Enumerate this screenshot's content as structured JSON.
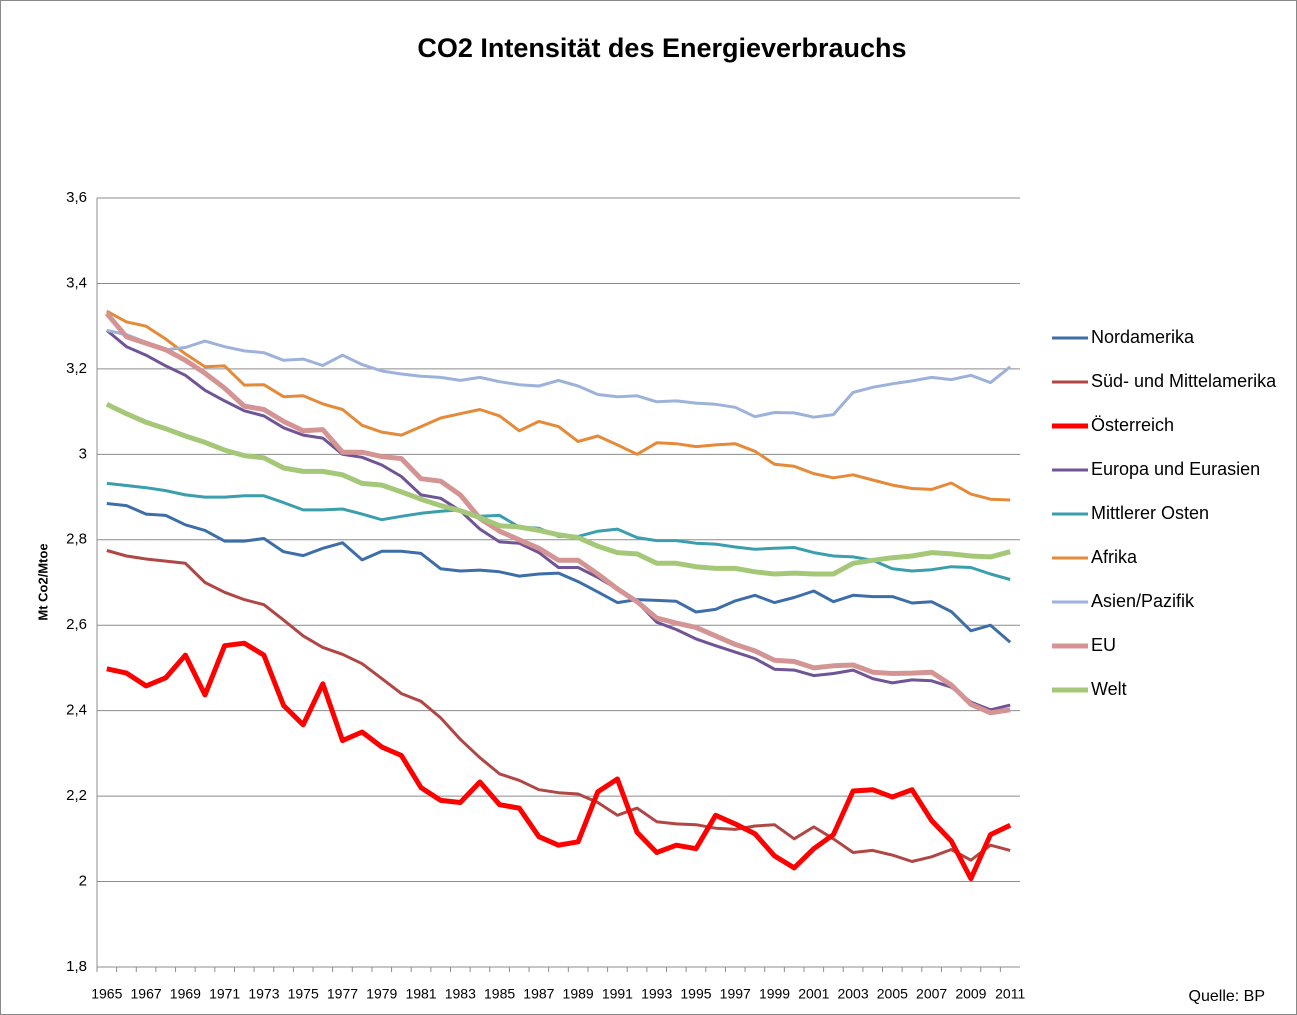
{
  "chart_data": {
    "type": "line",
    "title": "CO2 Intensität des Energieverbrauchs",
    "y_label": "Mt Co2/Mtoe",
    "source": "Quelle: BP",
    "legend": "right",
    "grid": true,
    "ylim": [
      1.8,
      3.6
    ],
    "yticks": [
      {
        "value": 1.8,
        "label": "1,8"
      },
      2,
      {
        "value": 2.2,
        "label": "2,2"
      },
      {
        "value": 2.4,
        "label": "2,4"
      },
      {
        "value": 2.6,
        "label": "2,6"
      },
      {
        "value": 2.8,
        "label": "2,8"
      },
      3,
      {
        "value": 3.2,
        "label": "3,2"
      },
      {
        "value": 3.4,
        "label": "3,4"
      },
      {
        "value": 3.6,
        "label": "3,6"
      }
    ],
    "categories": [
      "1965",
      null,
      "1967",
      null,
      "1969",
      null,
      "1971",
      null,
      "1973",
      null,
      "1975",
      null,
      "1977",
      null,
      "1979",
      null,
      "1981",
      null,
      "1983",
      null,
      "1985",
      null,
      "1987",
      null,
      "1989",
      null,
      "1991",
      null,
      "1993",
      null,
      "1995",
      null,
      "1997",
      null,
      "1999",
      null,
      "2001",
      null,
      "2003",
      null,
      "2005",
      null,
      "2007",
      null,
      "2009",
      null,
      "2011"
    ],
    "series": [
      {
        "name": "Nordamerika",
        "color": "#3e6ea8",
        "width": 3,
        "values": [
          2.885,
          2.88,
          2.86,
          2.857,
          2.835,
          2.822,
          2.797,
          2.797,
          2.803,
          2.772,
          2.763,
          2.78,
          2.793,
          2.753,
          2.773,
          2.773,
          2.768,
          2.732,
          2.727,
          2.729,
          2.725,
          2.715,
          2.72,
          2.722,
          2.702,
          2.678,
          2.653,
          2.66,
          2.658,
          2.656,
          2.631,
          2.637,
          2.657,
          2.67,
          2.653,
          2.665,
          2.68,
          2.655,
          2.67,
          2.667,
          2.667,
          2.652,
          2.655,
          2.632,
          2.587,
          2.6,
          2.56
        ]
      },
      {
        "name": "Süd- und Mittelamerika",
        "color": "#b04744",
        "width": 3,
        "values": [
          2.775,
          2.762,
          2.755,
          2.75,
          2.745,
          2.7,
          2.677,
          2.66,
          2.648,
          2.612,
          2.575,
          2.548,
          2.532,
          2.51,
          2.475,
          2.44,
          2.422,
          2.383,
          2.333,
          2.29,
          2.252,
          2.237,
          2.215,
          2.208,
          2.205,
          2.185,
          2.155,
          2.172,
          2.14,
          2.135,
          2.133,
          2.125,
          2.122,
          2.13,
          2.133,
          2.1,
          2.128,
          2.1,
          2.068,
          2.073,
          2.062,
          2.047,
          2.058,
          2.075,
          2.05,
          2.085,
          2.073
        ]
      },
      {
        "name": "Österreich",
        "color": "#ff0000",
        "width": 5,
        "values": [
          2.498,
          2.488,
          2.458,
          2.477,
          2.53,
          2.437,
          2.552,
          2.558,
          2.53,
          2.412,
          2.367,
          2.463,
          2.33,
          2.35,
          2.315,
          2.295,
          2.22,
          2.19,
          2.185,
          2.233,
          2.18,
          2.172,
          2.105,
          2.085,
          2.093,
          2.21,
          2.24,
          2.115,
          2.068,
          2.085,
          2.077,
          2.155,
          2.135,
          2.112,
          2.06,
          2.032,
          2.077,
          2.11,
          2.212,
          2.215,
          2.198,
          2.215,
          2.143,
          2.095,
          2.007,
          2.11,
          2.132
        ]
      },
      {
        "name": "Europa und Eurasien",
        "color": "#6f5496",
        "width": 3,
        "values": [
          3.29,
          3.252,
          3.232,
          3.207,
          3.185,
          3.15,
          3.125,
          3.102,
          3.09,
          3.062,
          3.045,
          3.038,
          3.0,
          2.993,
          2.975,
          2.948,
          2.905,
          2.897,
          2.868,
          2.825,
          2.795,
          2.792,
          2.77,
          2.735,
          2.735,
          2.712,
          2.685,
          2.655,
          2.607,
          2.59,
          2.568,
          2.552,
          2.537,
          2.522,
          2.497,
          2.495,
          2.482,
          2.487,
          2.495,
          2.475,
          2.465,
          2.472,
          2.47,
          2.455,
          2.42,
          2.402,
          2.413
        ]
      },
      {
        "name": "Mittlerer Osten",
        "color": "#3a9ead",
        "width": 3,
        "values": [
          2.932,
          2.927,
          2.922,
          2.915,
          2.905,
          2.9,
          2.9,
          2.903,
          2.903,
          2.887,
          2.87,
          2.87,
          2.872,
          2.86,
          2.847,
          2.855,
          2.862,
          2.867,
          2.87,
          2.855,
          2.857,
          2.83,
          2.827,
          2.808,
          2.808,
          2.82,
          2.825,
          2.805,
          2.798,
          2.798,
          2.792,
          2.79,
          2.783,
          2.778,
          2.78,
          2.782,
          2.77,
          2.762,
          2.76,
          2.752,
          2.732,
          2.727,
          2.73,
          2.737,
          2.735,
          2.72,
          2.707
        ]
      },
      {
        "name": "Afrika",
        "color": "#e48a38",
        "width": 3,
        "values": [
          3.335,
          3.31,
          3.3,
          3.27,
          3.235,
          3.205,
          3.207,
          3.162,
          3.163,
          3.135,
          3.137,
          3.118,
          3.105,
          3.068,
          3.052,
          3.045,
          3.065,
          3.085,
          3.095,
          3.105,
          3.09,
          3.055,
          3.077,
          3.065,
          3.03,
          3.043,
          3.022,
          3.0,
          3.027,
          3.025,
          3.018,
          3.022,
          3.025,
          3.007,
          2.977,
          2.972,
          2.955,
          2.945,
          2.952,
          2.94,
          2.928,
          2.92,
          2.918,
          2.933,
          2.907,
          2.895,
          2.893
        ]
      },
      {
        "name": "Asien/Pazifik",
        "color": "#9db2da",
        "width": 3,
        "values": [
          3.29,
          3.28,
          3.262,
          3.245,
          3.25,
          3.265,
          3.252,
          3.242,
          3.238,
          3.22,
          3.223,
          3.208,
          3.232,
          3.21,
          3.195,
          3.188,
          3.183,
          3.18,
          3.173,
          3.18,
          3.17,
          3.163,
          3.16,
          3.173,
          3.16,
          3.14,
          3.135,
          3.137,
          3.123,
          3.125,
          3.12,
          3.117,
          3.11,
          3.088,
          3.098,
          3.097,
          3.087,
          3.093,
          3.145,
          3.157,
          3.165,
          3.172,
          3.18,
          3.175,
          3.185,
          3.168,
          3.205
        ]
      },
      {
        "name": "EU",
        "color": "#d49494",
        "width": 5,
        "values": [
          3.33,
          3.275,
          3.26,
          3.245,
          3.22,
          3.19,
          3.155,
          3.113,
          3.105,
          3.077,
          3.055,
          3.058,
          3.005,
          3.005,
          2.995,
          2.99,
          2.943,
          2.937,
          2.905,
          2.85,
          2.82,
          2.8,
          2.78,
          2.752,
          2.752,
          2.72,
          2.685,
          2.655,
          2.617,
          2.605,
          2.595,
          2.575,
          2.555,
          2.54,
          2.518,
          2.515,
          2.5,
          2.505,
          2.507,
          2.49,
          2.487,
          2.488,
          2.49,
          2.46,
          2.415,
          2.395,
          2.402
        ]
      },
      {
        "name": "Welt",
        "color": "#a5c878",
        "width": 5,
        "values": [
          3.117,
          3.095,
          3.075,
          3.06,
          3.043,
          3.028,
          3.01,
          2.997,
          2.992,
          2.968,
          2.96,
          2.96,
          2.952,
          2.932,
          2.928,
          2.912,
          2.895,
          2.88,
          2.868,
          2.852,
          2.833,
          2.83,
          2.822,
          2.812,
          2.805,
          2.785,
          2.77,
          2.767,
          2.745,
          2.745,
          2.737,
          2.733,
          2.733,
          2.725,
          2.72,
          2.722,
          2.72,
          2.72,
          2.745,
          2.752,
          2.758,
          2.762,
          2.77,
          2.767,
          2.762,
          2.76,
          2.772
        ]
      }
    ]
  }
}
